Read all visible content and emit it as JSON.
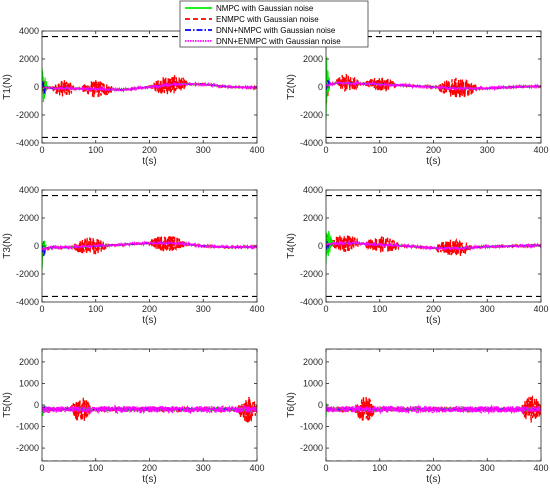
{
  "chart_data": {
    "type": "line",
    "legend": {
      "placement": "top-center",
      "entries": [
        {
          "name": "NMPC with Gaussian noise",
          "color": "#00ee00",
          "style": "solid"
        },
        {
          "name": "ENMPC with Gaussian noise",
          "color": "#ff0000",
          "style": "dashed"
        },
        {
          "name": "DNN+NMPC with Gaussian noise",
          "color": "#0000ff",
          "style": "dashdot"
        },
        {
          "name": "DNN+ENMPC with Gaussian noise",
          "color": "#ff00ff",
          "style": "dotted"
        }
      ]
    },
    "panels": [
      {
        "id": "T1",
        "ylabel": "T1(N)",
        "xlabel": "t(s)",
        "xlim": [
          0,
          400
        ],
        "ylim": [
          -4000,
          4000
        ],
        "xticks": [
          "0",
          "100",
          "200",
          "300",
          "400"
        ],
        "yticks": [
          "-4000",
          "-2000",
          "0",
          "2000",
          "4000"
        ],
        "bounds": [
          3600,
          -3600
        ],
        "baseline": [
          [
            0,
            0
          ],
          [
            20,
            -100
          ],
          [
            50,
            -100
          ],
          [
            100,
            -150
          ],
          [
            150,
            -200
          ],
          [
            200,
            0
          ],
          [
            250,
            200
          ],
          [
            300,
            200
          ],
          [
            350,
            0
          ],
          [
            400,
            -50
          ]
        ],
        "nmpc_transient": {
          "t_end": 12,
          "amp": 1500
        },
        "enmpc_bursts": [
          {
            "t": [
              20,
              60
            ],
            "amp": 600
          },
          {
            "t": [
              75,
              130
            ],
            "amp": 650
          },
          {
            "t": [
              205,
              270
            ],
            "amp": 700
          }
        ],
        "noise_amp": 70
      },
      {
        "id": "T2",
        "ylabel": "T2(N)",
        "xlabel": "t(s)",
        "xlim": [
          0,
          400
        ],
        "ylim": [
          -4000,
          4000
        ],
        "xticks": [
          "0",
          "100",
          "200",
          "300",
          "400"
        ],
        "yticks": [
          "-4000",
          "-2000",
          "0",
          "2000",
          "4000"
        ],
        "bounds": [
          3600,
          -3600
        ],
        "baseline": [
          [
            0,
            100
          ],
          [
            20,
            300
          ],
          [
            50,
            250
          ],
          [
            100,
            200
          ],
          [
            150,
            100
          ],
          [
            200,
            0
          ],
          [
            250,
            -100
          ],
          [
            300,
            -100
          ],
          [
            350,
            0
          ],
          [
            400,
            50
          ]
        ],
        "nmpc_transient": {
          "t_end": 8,
          "amp": 2500
        },
        "enmpc_bursts": [
          {
            "t": [
              20,
              60
            ],
            "amp": 700
          },
          {
            "t": [
              75,
              130
            ],
            "amp": 550
          },
          {
            "t": [
              210,
              280
            ],
            "amp": 750
          }
        ],
        "noise_amp": 70
      },
      {
        "id": "T3",
        "ylabel": "T3(N)",
        "xlabel": "t(s)",
        "xlim": [
          0,
          400
        ],
        "ylim": [
          -4000,
          4000
        ],
        "xticks": [
          "0",
          "100",
          "200",
          "300",
          "400"
        ],
        "yticks": [
          "-4000",
          "-2000",
          "0",
          "2000",
          "4000"
        ],
        "bounds": [
          3600,
          -3600
        ],
        "baseline": [
          [
            0,
            -200
          ],
          [
            20,
            -100
          ],
          [
            50,
            -100
          ],
          [
            100,
            0
          ],
          [
            150,
            100
          ],
          [
            200,
            200
          ],
          [
            250,
            200
          ],
          [
            300,
            0
          ],
          [
            350,
            -100
          ],
          [
            400,
            -50
          ]
        ],
        "nmpc_transient": {
          "t_end": 8,
          "amp": 1800
        },
        "enmpc_bursts": [
          {
            "t": [
              60,
              120
            ],
            "amp": 650
          },
          {
            "t": [
              200,
              265
            ],
            "amp": 600
          }
        ],
        "noise_amp": 70
      },
      {
        "id": "T4",
        "ylabel": "T4(N)",
        "xlabel": "t(s)",
        "xlim": [
          0,
          400
        ],
        "ylim": [
          -4000,
          4000
        ],
        "xticks": [
          "0",
          "100",
          "200",
          "300",
          "400"
        ],
        "yticks": [
          "-4000",
          "-2000",
          "0",
          "2000",
          "4000"
        ],
        "bounds": [
          3600,
          -3600
        ],
        "baseline": [
          [
            0,
            100
          ],
          [
            20,
            200
          ],
          [
            50,
            200
          ],
          [
            100,
            100
          ],
          [
            150,
            0
          ],
          [
            200,
            -150
          ],
          [
            250,
            -150
          ],
          [
            300,
            -50
          ],
          [
            350,
            0
          ],
          [
            400,
            50
          ]
        ],
        "nmpc_transient": {
          "t_end": 16,
          "amp": 1500
        },
        "enmpc_bursts": [
          {
            "t": [
              10,
              60
            ],
            "amp": 650
          },
          {
            "t": [
              75,
              135
            ],
            "amp": 600
          },
          {
            "t": [
              205,
              270
            ],
            "amp": 650
          }
        ],
        "noise_amp": 70
      },
      {
        "id": "T5",
        "ylabel": "T5(N)",
        "xlabel": "t(s)",
        "xlim": [
          0,
          400
        ],
        "ylim": [
          -2600,
          2600
        ],
        "xticks": [
          "0",
          "100",
          "200",
          "300",
          "400"
        ],
        "yticks": [
          "-2000",
          "-1000",
          "0",
          "1000",
          "2000"
        ],
        "bounds": [
          2600,
          -2600
        ],
        "baseline": [
          [
            0,
            -200
          ],
          [
            400,
            -200
          ]
        ],
        "nmpc_transient": {
          "t_end": 8,
          "amp": 350
        },
        "enmpc_bursts": [
          {
            "t": [
              55,
              90
            ],
            "amp": 600
          },
          {
            "t": [
              365,
              400
            ],
            "amp": 650
          }
        ],
        "noise_amp": 150
      },
      {
        "id": "T6",
        "ylabel": "T6(N)",
        "xlabel": "t(s)",
        "xlim": [
          0,
          400
        ],
        "ylim": [
          -2600,
          2600
        ],
        "xticks": [
          "0",
          "100",
          "200",
          "300",
          "400"
        ],
        "yticks": [
          "-2000",
          "-1000",
          "0",
          "1000",
          "2000"
        ],
        "bounds": [
          2600,
          -2600
        ],
        "baseline": [
          [
            0,
            -200
          ],
          [
            400,
            -200
          ]
        ],
        "nmpc_transient": {
          "t_end": 8,
          "amp": 350
        },
        "enmpc_bursts": [
          {
            "t": [
              55,
              90
            ],
            "amp": 600
          },
          {
            "t": [
              365,
              400
            ],
            "amp": 650
          }
        ],
        "noise_amp": 150
      }
    ]
  }
}
